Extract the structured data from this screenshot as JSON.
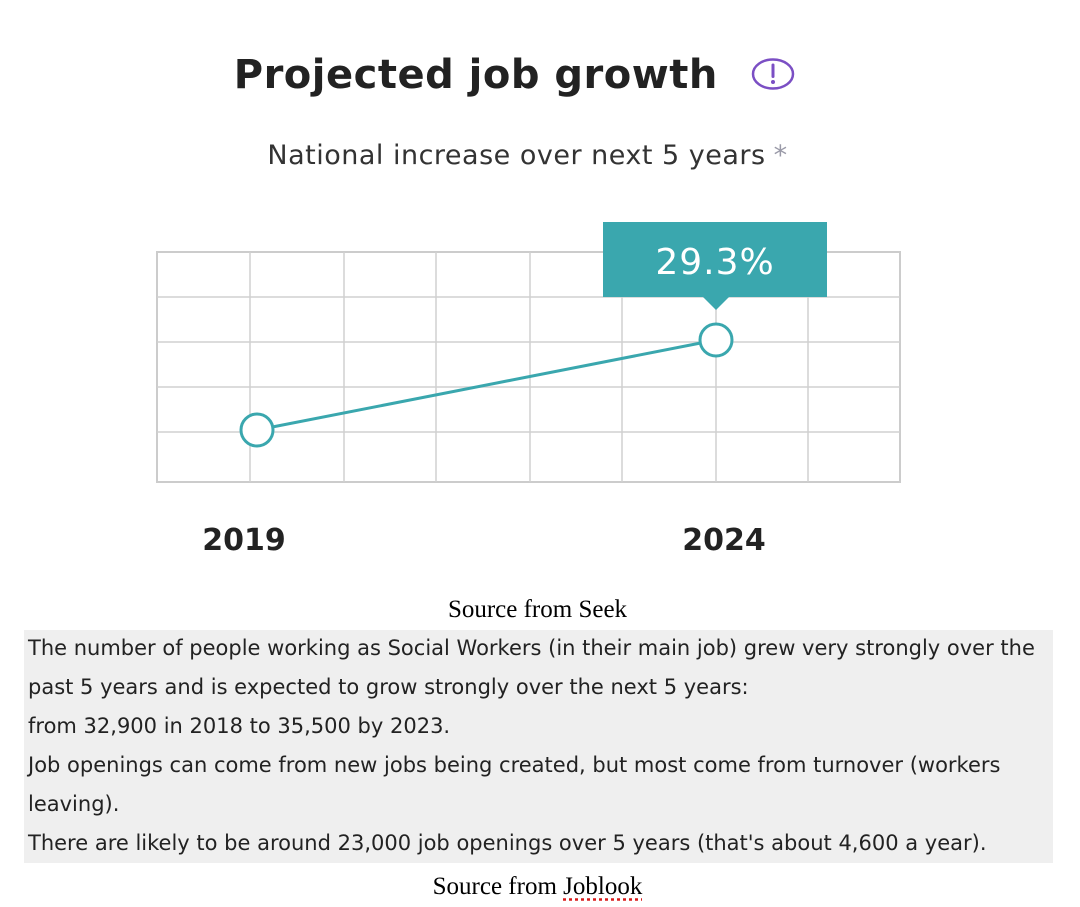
{
  "header": {
    "title": "Projected job growth",
    "info_icon": "exclamation-circle-icon",
    "subtitle": "National increase over next 5 years",
    "asterisk": "*"
  },
  "chart_data": {
    "type": "line",
    "x": [
      "2019",
      "2024"
    ],
    "series": [
      {
        "values": [
          0,
          29.3
        ]
      }
    ],
    "callout": "29.3%",
    "grid": true,
    "accent_color": "#3aa7ae"
  },
  "source_seek": "Source from Seek",
  "joblook_text": {
    "line1": "The number of people working as Social Workers (in their main job) grew very strongly over the",
    "line2": "past 5 years and is expected to grow strongly over the next 5 years:",
    "line3": "from 32,900 in 2018 to 35,500 by 2023.",
    "line4": "Job openings can come from new jobs being created, but most come from turnover (workers",
    "line5": "leaving).",
    "line6": "There are likely to be around 23,000 job openings over 5 years (that's about 4,600 a year)."
  },
  "source_joblook": {
    "prefix": "Source from",
    "name": "Joblook"
  }
}
